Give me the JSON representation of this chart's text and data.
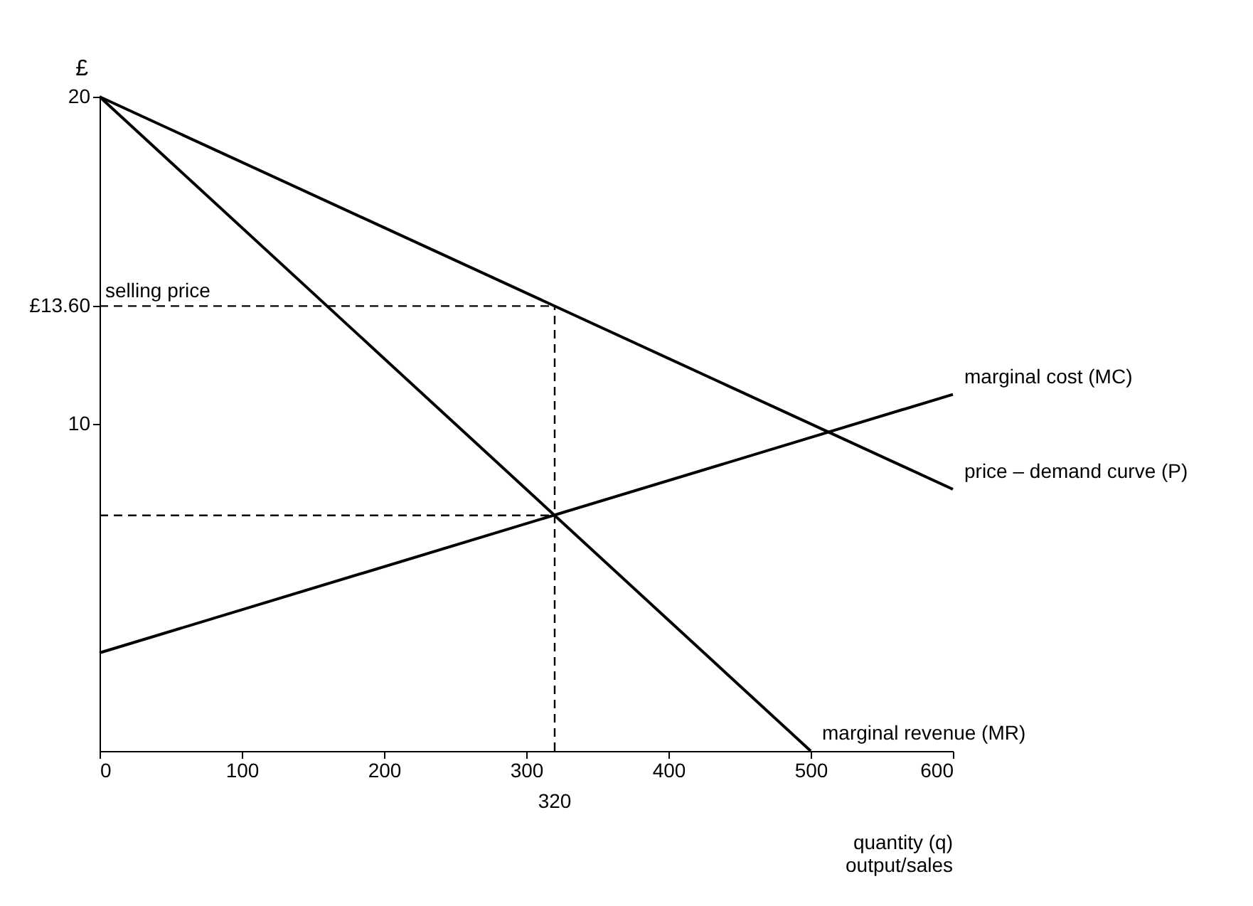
{
  "chart_data": {
    "type": "line",
    "ylabel": "£",
    "xlabel": "quantity (q)\noutput/sales",
    "xlim": [
      0,
      600
    ],
    "xticks": [
      0,
      100,
      200,
      300,
      400,
      500,
      600
    ],
    "ylim": [
      0,
      20
    ],
    "yticks": [
      10,
      {
        "value": 13.6,
        "label": "£13.60"
      },
      20
    ],
    "series": [
      {
        "name": "price – demand curve (P)",
        "color": "#000000",
        "x": [
          0,
          600
        ],
        "values": [
          20,
          8
        ]
      },
      {
        "name": "marginal cost (MC)",
        "color": "#000000",
        "x": [
          0,
          600
        ],
        "values": [
          3,
          10.9
        ]
      },
      {
        "name": "marginal revenue (MR)",
        "color": "#000000",
        "x": [
          0,
          500
        ],
        "values": [
          20,
          0
        ]
      }
    ],
    "ref_lines": [
      {
        "axis": "y",
        "value": 13.6,
        "label": "selling price",
        "line_style": "dashed"
      },
      {
        "axis": "y",
        "value": 7.2,
        "label": null,
        "line_style": "dashed"
      },
      {
        "axis": "x",
        "value": 320,
        "label": "320",
        "line_style": "dashed"
      }
    ],
    "grid": false,
    "marker": "none",
    "line_style": "solid"
  }
}
